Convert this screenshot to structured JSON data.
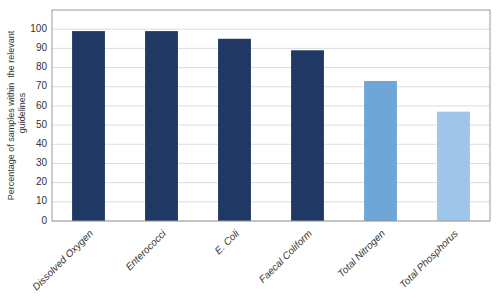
{
  "chart_data": {
    "type": "bar",
    "categories": [
      "Dissolved Oxygen",
      "Enterococci",
      "E. Coli",
      "Faecal Coliform",
      "Total Nitrogen",
      "Total Phosphorus"
    ],
    "values": [
      99,
      99,
      95,
      89,
      73,
      57
    ],
    "colors": [
      "#1F3864",
      "#1F3864",
      "#1F3864",
      "#1F3864",
      "#6EA6D8",
      "#9FC5E8"
    ],
    "y_label": "Percentage of samples within  the relevant\n  guidelines",
    "ylim": [
      0,
      110
    ],
    "yticks": [
      0,
      10,
      20,
      30,
      40,
      50,
      60,
      70,
      80,
      90,
      100
    ],
    "grid": true
  }
}
